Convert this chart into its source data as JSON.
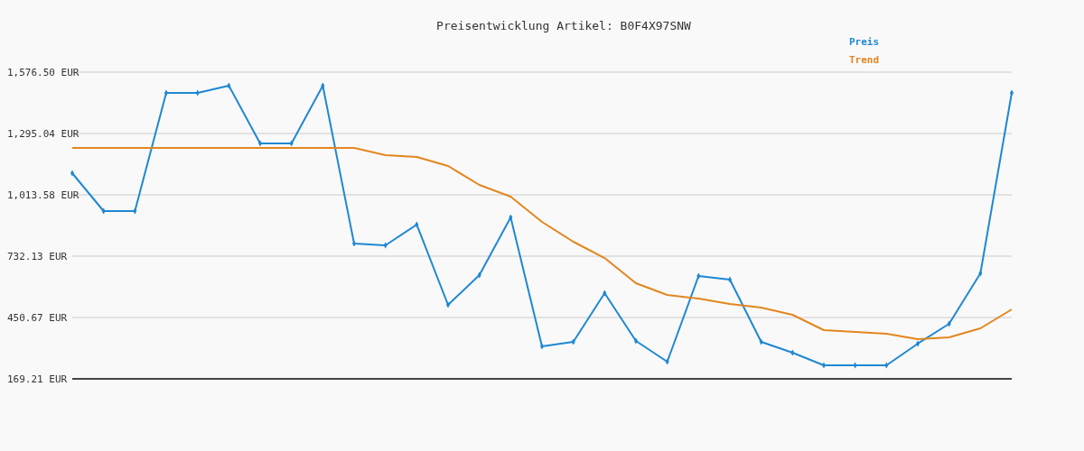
{
  "chart_data": {
    "type": "line",
    "title": "Preisentwicklung Artikel: B0F4X97SNW",
    "categories": [
      null,
      null,
      null,
      null,
      null,
      null,
      null,
      null,
      null,
      null,
      null,
      null,
      null,
      null,
      null,
      null,
      null,
      null,
      null,
      null,
      null,
      null,
      null,
      null,
      null,
      null,
      null,
      null,
      null,
      null,
      null
    ],
    "series": [
      {
        "name": "Preis",
        "color": "#1f88d2",
        "marker": "diamond",
        "values": [
          1112.9,
          939.1,
          939.1,
          1481.3,
          1481.3,
          1514.4,
          1249.5,
          1249.5,
          1514.4,
          790.1,
          781.8,
          877.0,
          508.6,
          645.2,
          910.1,
          318.2,
          338.9,
          562.4,
          343.0,
          247.8,
          641.0,
          624.5,
          338.9,
          289.2,
          231.3,
          231.3,
          231.3,
          330.6,
          421.7,
          653.5,
          1481.3
        ]
      },
      {
        "name": "Trend",
        "color": "#e3861e",
        "marker": "none",
        "values": [
          1228.8,
          1228.8,
          1228.8,
          1228.8,
          1228.8,
          1228.8,
          1228.8,
          1228.8,
          1228.8,
          1228.8,
          1195.7,
          1187.4,
          1146.0,
          1059.1,
          1005.3,
          889.4,
          798.3,
          723.7,
          607.9,
          554.0,
          537.5,
          512.7,
          496.2,
          463.1,
          392.7,
          384.4,
          376.2,
          351.3,
          359.6,
          401.0,
          487.9
        ]
      }
    ],
    "ylim": [
      169.21,
      1576.5
    ],
    "yticks": [
      {
        "value": 169.21,
        "label": "169.21 EUR"
      },
      {
        "value": 450.67,
        "label": "450.67 EUR"
      },
      {
        "value": 732.13,
        "label": "732.13 EUR"
      },
      {
        "value": 1013.58,
        "label": "1,013.58 EUR"
      },
      {
        "value": 1295.04,
        "label": "1,295.04 EUR"
      },
      {
        "value": 1576.5,
        "label": "1,576.50 EUR"
      }
    ],
    "grid": "y",
    "legend": "top right"
  }
}
